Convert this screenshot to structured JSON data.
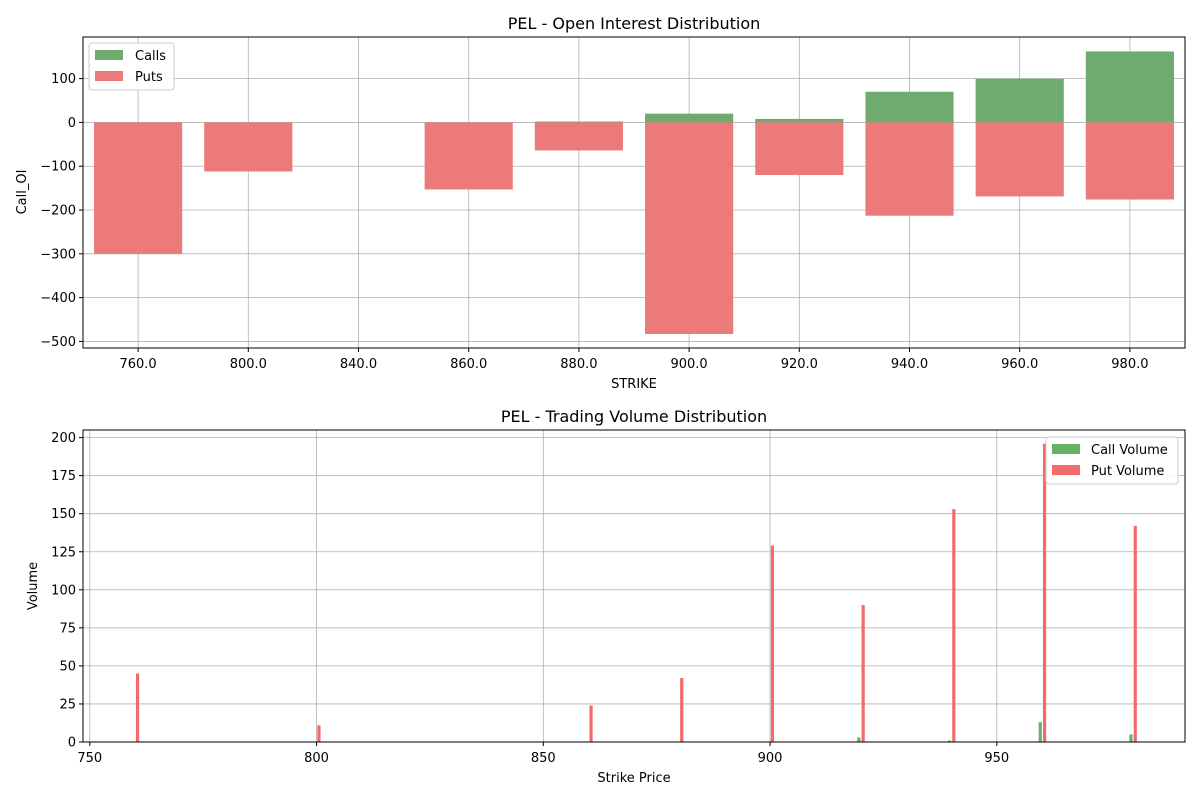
{
  "chart_data": [
    {
      "type": "bar",
      "title": "PEL - Open Interest Distribution",
      "xlabel": "STRIKE",
      "ylabel": "Call_OI",
      "categories": [
        "760.0",
        "800.0",
        "840.0",
        "860.0",
        "880.0",
        "900.0",
        "920.0",
        "940.0",
        "960.0",
        "980.0"
      ],
      "series": [
        {
          "name": "Calls",
          "color": "#6faa6f",
          "values": [
            0,
            0,
            0,
            0,
            2,
            20,
            8,
            70,
            100,
            162
          ]
        },
        {
          "name": "Puts",
          "color": "#ed7a7a",
          "values": [
            -300,
            -112,
            0,
            -153,
            -64,
            -483,
            -120,
            -213,
            -169,
            -176
          ]
        }
      ],
      "ylim": [
        -515,
        195
      ],
      "yticks": [
        -500,
        -400,
        -300,
        -200,
        -100,
        0,
        100
      ],
      "grid": true,
      "legend": "top-left"
    },
    {
      "type": "bar",
      "title": "PEL - Trading Volume Distribution",
      "xlabel": "Strike Price",
      "ylabel": "Volume",
      "x": [
        760,
        800,
        840,
        860,
        880,
        900,
        920,
        940,
        960,
        980
      ],
      "series": [
        {
          "name": "Call Volume",
          "color": "#66b266",
          "values": [
            0,
            0,
            0,
            0,
            0,
            0,
            3,
            1,
            13,
            5
          ]
        },
        {
          "name": "Put Volume",
          "color": "#f46a6a",
          "values": [
            45,
            11,
            0,
            24,
            42,
            129,
            90,
            153,
            196,
            142
          ]
        }
      ],
      "xlim": [
        748.5,
        991.5
      ],
      "xticks": [
        750,
        800,
        850,
        900,
        950
      ],
      "ylim": [
        0,
        205
      ],
      "yticks": [
        0,
        25,
        50,
        75,
        100,
        125,
        150,
        175,
        200
      ],
      "grid": true,
      "legend": "top-right"
    }
  ]
}
